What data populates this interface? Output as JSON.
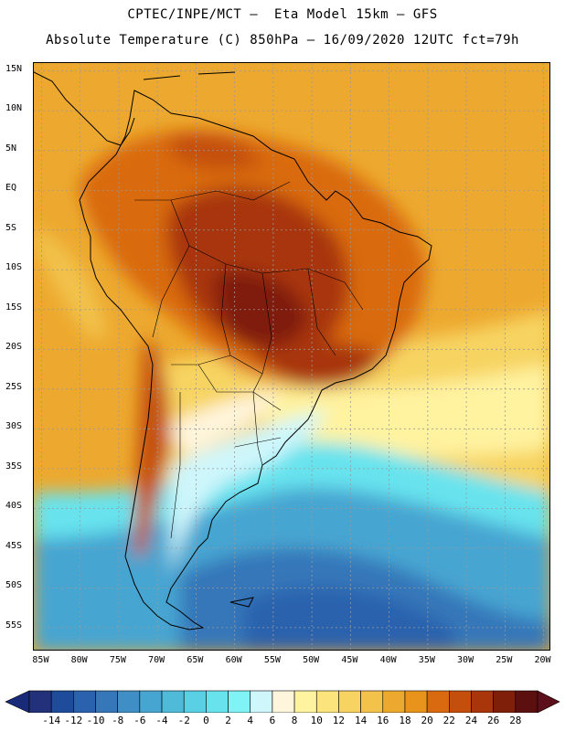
{
  "header": {
    "line1": "CPTEC/INPE/MCT –  Eta Model 15km – GFS",
    "line2": "Absolute Temperature (C) 850hPa – 16/09/2020 12UTC fct=79h"
  },
  "axes": {
    "lat_labels": [
      "15N",
      "10N",
      "5N",
      "EQ",
      "5S",
      "10S",
      "15S",
      "20S",
      "25S",
      "30S",
      "35S",
      "40S",
      "45S",
      "50S",
      "55S"
    ],
    "lon_labels": [
      "85W",
      "80W",
      "75W",
      "70W",
      "65W",
      "60W",
      "55W",
      "50W",
      "45W",
      "40W",
      "35W",
      "30W",
      "25W",
      "20W"
    ]
  },
  "colorbar": {
    "labels": [
      "-14",
      "-12",
      "-10",
      "-8",
      "-6",
      "-4",
      "-2",
      "0",
      "2",
      "4",
      "6",
      "8",
      "10",
      "12",
      "14",
      "16",
      "18",
      "20",
      "22",
      "24",
      "26",
      "28"
    ],
    "colors": [
      "#22317a",
      "#1f4c9a",
      "#2a62ad",
      "#3577b9",
      "#3f8ec6",
      "#47a5d1",
      "#4fbbd9",
      "#59d0e4",
      "#68e3ee",
      "#7ff3f6",
      "#cef6fb",
      "#fff5dc",
      "#fff3a0",
      "#fbe47c",
      "#f7d462",
      "#f2c24b",
      "#eda92f",
      "#e8941c",
      "#d96a10",
      "#c44f0c",
      "#a8360a",
      "#7f1f0a",
      "#5c0f0f"
    ]
  },
  "chart_data": {
    "type": "heatmap",
    "variable": "Absolute Temperature (C)",
    "level": "850hPa",
    "run": "16/09/2020 12UTC",
    "forecast": "fct=79h",
    "model": "Eta Model 15km – GFS",
    "lon_range": [
      -86,
      -19
    ],
    "lat_range": [
      16,
      -58
    ],
    "color_levels": [
      -14,
      -12,
      -10,
      -8,
      -6,
      -4,
      -2,
      0,
      2,
      4,
      6,
      8,
      10,
      12,
      14,
      16,
      18,
      20,
      22,
      24,
      26,
      28
    ]
  }
}
